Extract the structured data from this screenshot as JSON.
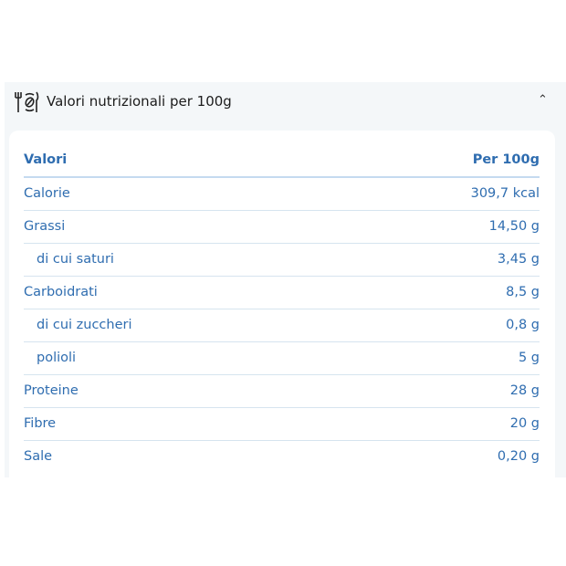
{
  "section": {
    "title": "Valori nutrizionali per 100g",
    "icon": "plate-fork-knife-leaf-icon",
    "expanded": true
  },
  "table": {
    "headers": [
      "Valori",
      "Per 100g"
    ],
    "rows": [
      {
        "label": "Calorie",
        "value": "309,7 kcal",
        "indent": false
      },
      {
        "label": "Grassi",
        "value": "14,50 g",
        "indent": false
      },
      {
        "label": "di cui saturi",
        "value": "3,45 g",
        "indent": true
      },
      {
        "label": "Carboidrati",
        "value": "8,5 g",
        "indent": false
      },
      {
        "label": "di cui zuccheri",
        "value": "0,8 g",
        "indent": true
      },
      {
        "label": "polioli",
        "value": "5 g",
        "indent": true
      },
      {
        "label": "Proteine",
        "value": "28 g",
        "indent": false
      },
      {
        "label": "Fibre",
        "value": "20 g",
        "indent": false
      },
      {
        "label": "Sale",
        "value": "0,20 g",
        "indent": false
      }
    ]
  },
  "colors": {
    "text": "#2f6db0",
    "panel": "#f4f7f9"
  }
}
